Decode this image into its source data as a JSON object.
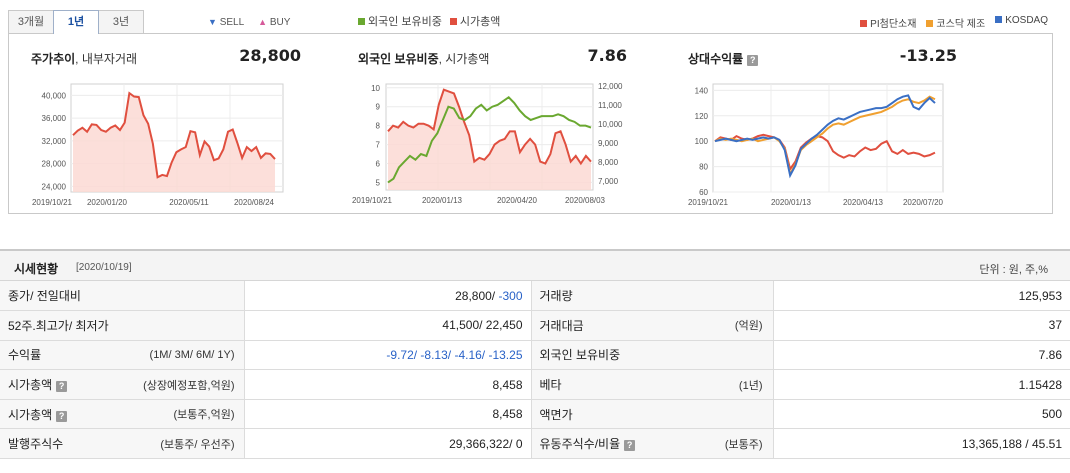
{
  "tabs": [
    {
      "label": "3개월",
      "active": false
    },
    {
      "label": "1년",
      "active": true
    },
    {
      "label": "3년",
      "active": false
    }
  ],
  "legend_trade": {
    "sell": "SELL",
    "buy": "BUY"
  },
  "legend_mid": [
    {
      "label": "외국인 보유비중",
      "color": "#6aa830"
    },
    {
      "label": "시가총액",
      "color": "#e04f3f"
    }
  ],
  "legend_right": [
    {
      "label": "PI첨단소재",
      "color": "#e04f3f"
    },
    {
      "label": "코스닥 제조",
      "color": "#f0a030"
    },
    {
      "label": "KOSDAQ",
      "color": "#3a6fc4"
    }
  ],
  "charts": {
    "price": {
      "title": "주가추이",
      "subtitle": ", 내부자거래",
      "value": "28,800",
      "y_ticks": [
        "40,000",
        "36,000",
        "32,000",
        "28,000",
        "24,000"
      ],
      "x_ticks": [
        "2019/10/21",
        "2020/01/20",
        "2020/05/11",
        "2020/08/24"
      ]
    },
    "foreign": {
      "title": "외국인 보유비중",
      "subtitle": ", 시가총액",
      "value": "7.86",
      "y_left_ticks": [
        "10",
        "9",
        "8",
        "7",
        "6",
        "5"
      ],
      "y_right_ticks": [
        "12,000",
        "11,000",
        "10,000",
        "9,000",
        "8,000",
        "7,000"
      ],
      "x_ticks": [
        "2019/10/21",
        "2020/01/13",
        "2020/04/20",
        "2020/08/03"
      ]
    },
    "relative": {
      "title": "상대수익률",
      "value": "-13.25",
      "y_ticks": [
        "140",
        "120",
        "100",
        "80",
        "60"
      ],
      "x_ticks": [
        "2019/10/21",
        "2020/01/13",
        "2020/04/13",
        "2020/07/20"
      ]
    }
  },
  "chart_data": [
    {
      "type": "area",
      "title": "주가추이, 내부자거래",
      "ylim": [
        23000,
        42000
      ],
      "series": [
        {
          "values": [
            33000,
            33800,
            34300,
            33600,
            34900,
            34800,
            33900,
            33600,
            34300,
            34700,
            33900,
            35200,
            40400,
            39800,
            39700,
            36500,
            35000,
            31500,
            25600,
            26000,
            25800,
            28200,
            30000,
            30500,
            30900,
            33700,
            33500,
            29500,
            31900,
            31000,
            28600,
            28900,
            30500,
            33600,
            34000,
            31600,
            29000,
            30900,
            30200,
            30900,
            29000,
            29800,
            29700,
            28800
          ]
        }
      ]
    },
    {
      "type": "line",
      "title": "외국인 보유비중, 시가총액",
      "series": [
        {
          "values": [
            5.0,
            5.2,
            5.8,
            6.1,
            6.4,
            6.2,
            6.5,
            6.4,
            7.2,
            7.6,
            8.3,
            9.0,
            8.9,
            8.4,
            8.3,
            8.5,
            8.9,
            9.1,
            8.8,
            9.0,
            9.1,
            9.3,
            9.5,
            9.2,
            8.8,
            8.5,
            8.3,
            8.4,
            8.5,
            8.5,
            8.5,
            8.6,
            8.5,
            8.3,
            8.2,
            8.0,
            8.0,
            7.9
          ]
        },
        {
          "values": [
            7.7,
            8.0,
            7.9,
            8.2,
            8.0,
            7.9,
            8.1,
            8.1,
            8.0,
            7.8,
            9.1,
            9.9,
            9.8,
            9.7,
            9.0,
            8.2,
            7.5,
            6.1,
            6.3,
            6.2,
            6.5,
            7.0,
            7.2,
            7.3,
            7.7,
            7.7,
            6.6,
            7.0,
            7.3,
            7.0,
            6.1,
            6.0,
            6.5,
            7.6,
            7.7,
            7.0,
            6.1,
            6.4,
            6.0,
            6.4,
            6.1
          ]
        }
      ]
    },
    {
      "type": "line",
      "title": "상대수익률",
      "ylim": [
        60,
        145
      ],
      "series": [
        {
          "name": "PI첨단소재",
          "values": [
            100,
            103,
            102,
            101,
            104,
            102,
            101,
            102,
            104,
            105,
            104,
            103,
            101,
            95,
            78,
            84,
            95,
            99,
            102,
            104,
            103,
            100,
            92,
            89,
            87,
            89,
            88,
            92,
            95,
            93,
            94,
            98,
            100,
            92,
            90,
            93,
            90,
            91,
            90,
            88,
            89,
            91
          ]
        },
        {
          "name": "코스닥 제조",
          "values": [
            100,
            102,
            101,
            102,
            101,
            100,
            101,
            102,
            100,
            101,
            102,
            103,
            100,
            94,
            74,
            82,
            93,
            97,
            100,
            103,
            106,
            110,
            113,
            114,
            113,
            115,
            117,
            119,
            120,
            121,
            122,
            123,
            125,
            127,
            130,
            132,
            133,
            131,
            130,
            132,
            135,
            133
          ]
        },
        {
          "name": "KOSDAQ",
          "values": [
            100,
            101,
            102,
            101,
            100,
            101,
            102,
            101,
            102,
            103,
            102,
            103,
            101,
            93,
            73,
            81,
            94,
            98,
            102,
            105,
            109,
            113,
            116,
            118,
            117,
            119,
            121,
            123,
            124,
            125,
            126,
            126,
            127,
            130,
            133,
            135,
            136,
            127,
            125,
            130,
            134,
            130
          ]
        }
      ]
    }
  ],
  "section": {
    "title": "시세현황",
    "date": "[2020/10/19]",
    "unit": "단위 : 원, 주,%"
  },
  "rows": [
    {
      "label": "종가/ 전일대비",
      "help": false,
      "note": "",
      "value_main": "28,800/ ",
      "value_extra": "-300",
      "label2": "거래량",
      "help2": false,
      "note2": "",
      "value2": "125,953"
    },
    {
      "label": "52주.최고가/ 최저가",
      "help": false,
      "note": "",
      "value_main": "41,500/ 22,450",
      "value_extra": "",
      "label2": "거래대금",
      "help2": false,
      "note2": "(억원)",
      "value2": "37"
    },
    {
      "label": "수익률",
      "help": false,
      "note": "(1M/ 3M/ 6M/ 1Y)",
      "value_main": "",
      "value_extra": "-9.72/ -8.13/ -4.16/ -13.25",
      "label2": "외국인 보유비중",
      "help2": false,
      "note2": "",
      "value2": "7.86"
    },
    {
      "label": "시가총액",
      "help": true,
      "note": "(상장예정포함,억원)",
      "value_main": "8,458",
      "value_extra": "",
      "label2": "베타",
      "help2": false,
      "note2": "(1년)",
      "value2": "1.15428"
    },
    {
      "label": "시가총액",
      "help": true,
      "note": "(보통주,억원)",
      "value_main": "8,458",
      "value_extra": "",
      "label2": "액면가",
      "help2": false,
      "note2": "",
      "value2": "500"
    },
    {
      "label": "발행주식수",
      "help": false,
      "note": "(보통주/ 우선주)",
      "value_main": "29,366,322/ 0",
      "value_extra": "",
      "label2": "유동주식수/비율",
      "help2": true,
      "note2": "(보통주)",
      "value2": "13,365,188 / 45.51"
    }
  ]
}
